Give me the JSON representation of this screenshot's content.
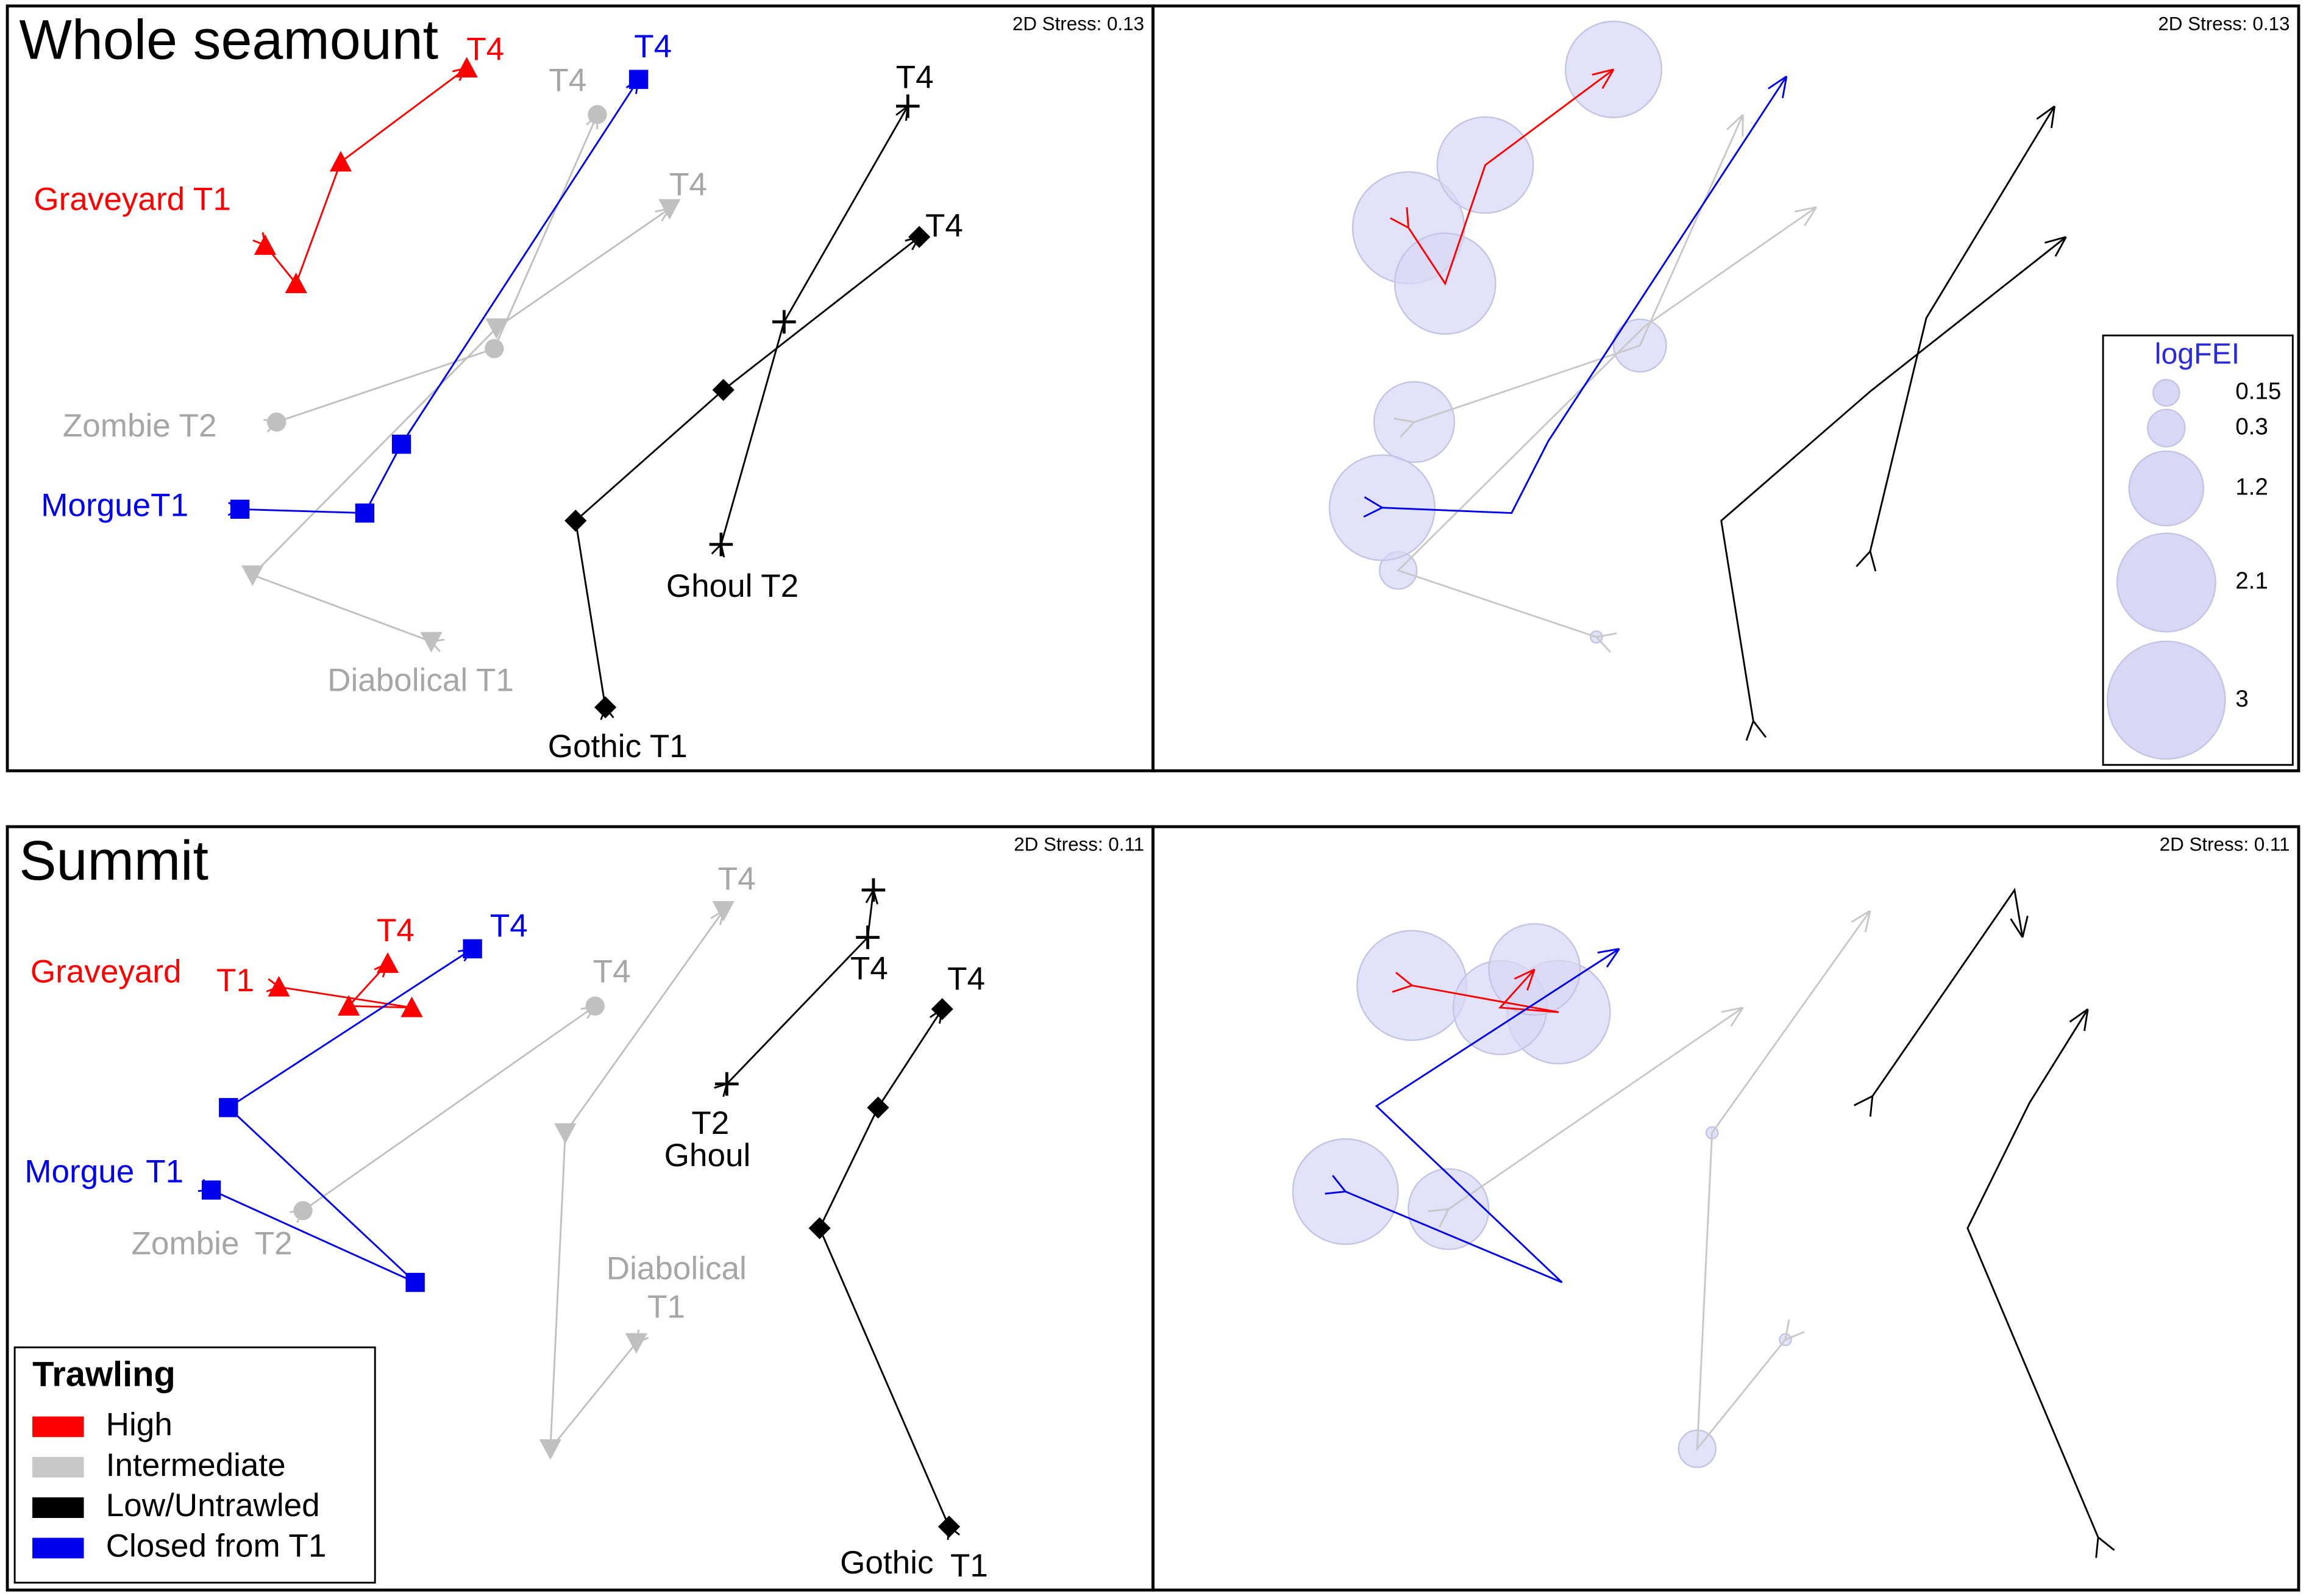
{
  "chart_data": [
    {
      "type": "scatter",
      "title": "Whole seamount",
      "stress_label": "2D Stress: 0.13",
      "xlim": [
        0,
        100
      ],
      "ylim": [
        0,
        100
      ],
      "series": [
        {
          "color": "#ff0000",
          "label_color": "#ff0000",
          "marker": "triangle-up",
          "labels": [
            "Graveyard T1",
            "T4"
          ],
          "x": [
            22.5,
            25.2,
            29.1,
            40.1
          ],
          "y": [
            68.7,
            63.7,
            79.6,
            91.9
          ]
        },
        {
          "color": "#c0c0c0",
          "label_color": "#a6a6a6",
          "marker": "circle",
          "labels": [
            "Zombie T2",
            "T4"
          ],
          "x": [
            23.5,
            42.5,
            51.5
          ],
          "y": [
            45.6,
            55.2,
            85.8
          ]
        },
        {
          "color": "#c0c0c0",
          "label_color": "#a6a6a6",
          "marker": "triangle-down",
          "labels": [
            "Diabolical T1",
            "T4"
          ],
          "x": [
            37.0,
            21.4,
            42.7,
            57.8
          ],
          "y": [
            16.9,
            25.6,
            57.9,
            73.5
          ]
        },
        {
          "color": "#0000ee",
          "label_color": "#0000ee",
          "marker": "square",
          "labels": [
            "MorgueT1",
            "T4"
          ],
          "x": [
            20.3,
            31.2,
            34.4,
            55.1
          ],
          "y": [
            34.2,
            33.7,
            42.7,
            90.4
          ]
        },
        {
          "color": "#000000",
          "label_color": "#000000",
          "marker": "plus",
          "labels": [
            "Ghoul T2",
            "T4"
          ],
          "x": [
            62.3,
            67.8,
            78.6
          ],
          "y": [
            29.6,
            58.7,
            86.9
          ]
        },
        {
          "color": "#000000",
          "label_color": "#000000",
          "marker": "diamond",
          "labels": [
            "Gothic T1",
            "T4"
          ],
          "x": [
            52.2,
            49.6,
            62.5,
            79.6
          ],
          "y": [
            8.3,
            32.7,
            49.8,
            69.8
          ]
        }
      ]
    },
    {
      "type": "bubble",
      "stress_label": "2D Stress: 0.13",
      "xlim": [
        0,
        100
      ],
      "ylim": [
        0,
        100
      ],
      "bubble_color": "#d8d8f6",
      "size_legend": {
        "title": "logFEI",
        "values": [
          0.15,
          0.3,
          1.2,
          2.1,
          3
        ]
      },
      "series": [
        {
          "color": "#ff0000",
          "x": [
            22.3,
            25.5,
            29.0,
            40.2
          ],
          "y": [
            71.0,
            63.7,
            79.2,
            91.7
          ],
          "sizes": [
            2.7,
            2.2,
            2.0,
            2.0
          ]
        },
        {
          "color": "#c8c8c8",
          "x": [
            22.8,
            42.5,
            51.5
          ],
          "y": [
            45.6,
            55.6,
            85.8
          ],
          "sizes": [
            1.4,
            0.6,
            0
          ]
        },
        {
          "color": "#c8c8c8",
          "x": [
            38.7,
            21.4,
            42.9,
            57.9
          ],
          "y": [
            17.5,
            26.2,
            58.1,
            73.7
          ],
          "sizes": [
            0.03,
            0.3,
            0,
            0
          ]
        },
        {
          "color": "#0000ee",
          "x": [
            20.0,
            31.3,
            34.5,
            55.3
          ],
          "y": [
            34.4,
            33.7,
            43.1,
            90.8
          ],
          "sizes": [
            2.4,
            0,
            0,
            0
          ]
        },
        {
          "color": "#000000",
          "x": [
            62.6,
            67.5,
            78.7
          ],
          "y": [
            28.7,
            59.2,
            86.9
          ],
          "sizes": [
            0,
            0,
            0
          ]
        },
        {
          "color": "#000000",
          "x": [
            52.4,
            49.6,
            62.6,
            79.7
          ],
          "y": [
            6.5,
            32.7,
            49.6,
            69.8
          ],
          "sizes": [
            0,
            0,
            0,
            0
          ]
        }
      ]
    },
    {
      "type": "scatter",
      "title": "Summit",
      "stress_label": "2D Stress: 0.11",
      "xlim": [
        0,
        100
      ],
      "ylim": [
        0,
        100
      ],
      "legend": {
        "title": "Trawling",
        "entries": [
          {
            "label": "High",
            "color": "#ff0000"
          },
          {
            "label": "Intermediate",
            "color": "#c8c8c8"
          },
          {
            "label": "Low/Untrawled",
            "color": "#000000"
          },
          {
            "label": "Closed from T1",
            "color": "#0000ee"
          }
        ]
      },
      "series": [
        {
          "color": "#ff0000",
          "label_color": "#ff0000",
          "marker": "triangle-up",
          "labels": [
            "Graveyard",
            "T1",
            "T4"
          ],
          "x": [
            23.7,
            35.3,
            29.8,
            33.2
          ],
          "y": [
            79.0,
            76.3,
            76.5,
            82.1
          ]
        },
        {
          "color": "#c0c0c0",
          "label_color": "#a6a6a6",
          "marker": "circle",
          "labels": [
            "Zombie",
            "T2",
            "T4"
          ],
          "x": [
            25.8,
            51.3
          ],
          "y": [
            49.7,
            76.5
          ]
        },
        {
          "color": "#c0c0c0",
          "label_color": "#a6a6a6",
          "marker": "triangle-down",
          "labels": [
            "Diabolical",
            "T1",
            "T4"
          ],
          "x": [
            54.9,
            47.4,
            48.7,
            62.5
          ],
          "y": [
            32.4,
            18.5,
            59.9,
            89.0
          ]
        },
        {
          "color": "#0000ee",
          "label_color": "#0000ee",
          "marker": "square",
          "labels": [
            "Morgue",
            "T1",
            "T4"
          ],
          "x": [
            17.8,
            35.6,
            19.3,
            40.6
          ],
          "y": [
            52.4,
            40.3,
            63.2,
            84.0
          ]
        },
        {
          "color": "#000000",
          "label_color": "#000000",
          "marker": "plus",
          "labels": [
            "T2",
            "Ghoul",
            "T4"
          ],
          "x": [
            62.8,
            75.1,
            75.6
          ],
          "y": [
            66.3,
            85.5,
            91.7
          ]
        },
        {
          "color": "#000000",
          "label_color": "#000000",
          "marker": "diamond",
          "labels": [
            "Gothic",
            "T1",
            "T4"
          ],
          "x": [
            82.2,
            70.9,
            76.0,
            81.6
          ],
          "y": [
            8.3,
            47.4,
            63.2,
            76.1
          ]
        }
      ]
    },
    {
      "type": "bubble",
      "stress_label": "2D Stress: 0.11",
      "xlim": [
        0,
        100
      ],
      "ylim": [
        0,
        100
      ],
      "bubble_color": "#d8d8f6",
      "series": [
        {
          "color": "#ff0000",
          "x": [
            22.6,
            35.4,
            30.3,
            33.3
          ],
          "y": [
            79.2,
            75.7,
            76.3,
            81.3
          ],
          "sizes": [
            2.6,
            2.3,
            1.9,
            1.8
          ]
        },
        {
          "color": "#c8c8c8",
          "x": [
            25.8,
            51.5
          ],
          "y": [
            49.9,
            76.3
          ],
          "sizes": [
            1.4,
            0
          ]
        },
        {
          "color": "#c8c8c8",
          "x": [
            55.2,
            47.5,
            48.8,
            62.6
          ],
          "y": [
            32.8,
            18.5,
            59.9,
            89.0
          ],
          "sizes": [
            0.03,
            0.3,
            0.03,
            0
          ]
        },
        {
          "color": "#0000ee",
          "x": [
            16.8,
            35.7,
            19.5,
            40.7
          ],
          "y": [
            52.2,
            40.3,
            63.4,
            84.0
          ],
          "sizes": [
            2.4,
            0,
            0,
            0
          ]
        },
        {
          "color": "#000000",
          "x": [
            62.8,
            75.2,
            75.9
          ],
          "y": [
            64.7,
            91.7,
            85.5
          ],
          "sizes": [
            0,
            0,
            0
          ]
        },
        {
          "color": "#000000",
          "x": [
            82.5,
            71.1,
            76.5,
            81.6
          ],
          "y": [
            6.9,
            47.4,
            63.8,
            76.1
          ],
          "sizes": [
            0,
            0,
            0,
            0
          ]
        }
      ]
    }
  ]
}
